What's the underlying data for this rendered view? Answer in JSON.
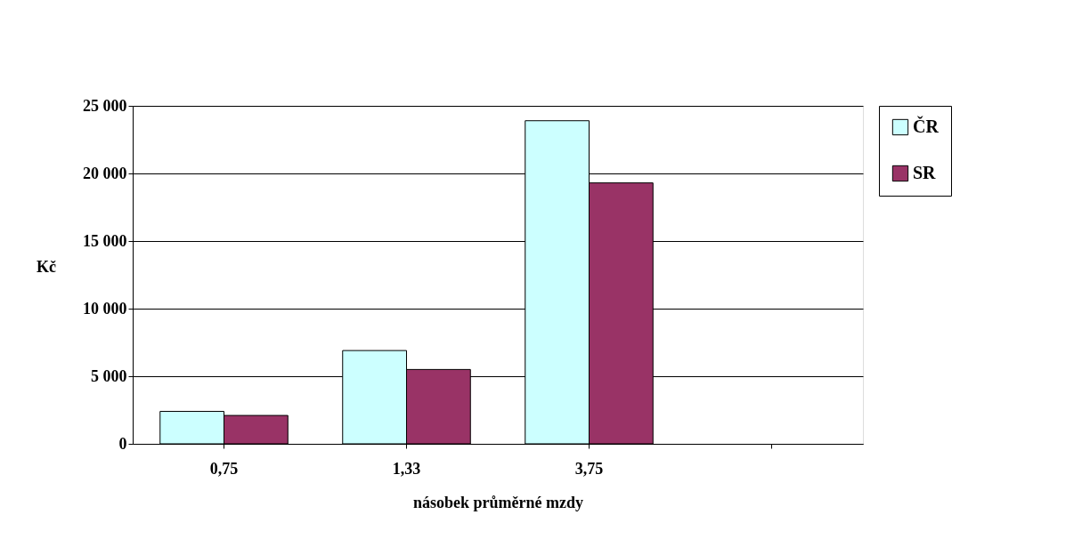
{
  "chart_data": {
    "type": "bar",
    "xlabel": "násobek průměrné mzdy",
    "ylabel": "Kč",
    "categories": [
      "0,75",
      "1,33",
      "3,75",
      null
    ],
    "series": [
      {
        "name": "ČR",
        "color": "#ccffff",
        "values": [
          2400,
          6900,
          23900,
          null
        ]
      },
      {
        "name": "SR",
        "color": "#993366",
        "values": [
          2100,
          5500,
          19300,
          null
        ]
      }
    ],
    "ylim": [
      0,
      25000
    ],
    "yticks": [
      {
        "value": 0,
        "label": "0"
      },
      {
        "value": 5000,
        "label": "5 000"
      },
      {
        "value": 10000,
        "label": "10 000"
      },
      {
        "value": 15000,
        "label": "15 000"
      },
      {
        "value": 20000,
        "label": "20 000"
      },
      {
        "value": 25000,
        "label": "25 000"
      }
    ],
    "grid": "y",
    "legend": "right"
  }
}
